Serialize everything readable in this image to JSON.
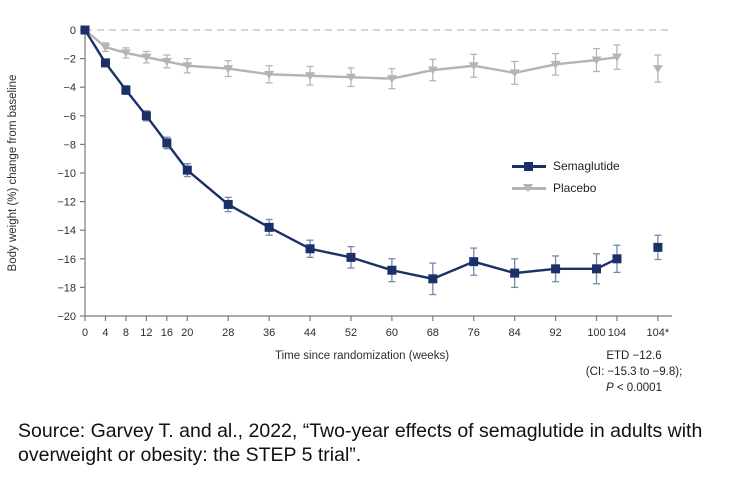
{
  "chart_data": {
    "type": "line",
    "title": "",
    "xlabel": "Time since randomization (weeks)",
    "ylabel": "Body weight (%) change from baseline",
    "x_weeks": [
      0,
      4,
      8,
      12,
      16,
      20,
      28,
      36,
      44,
      52,
      60,
      68,
      76,
      84,
      92,
      100,
      104
    ],
    "x_tick_weeks": [
      0,
      4,
      8,
      12,
      16,
      20,
      28,
      36,
      44,
      52,
      60,
      68,
      76,
      84,
      92,
      100,
      104,
      112
    ],
    "x_tick_labels": [
      "0",
      "4",
      "8",
      "12",
      "16",
      "20",
      "28",
      "36",
      "44",
      "52",
      "60",
      "68",
      "76",
      "84",
      "92",
      "100",
      "104",
      "104*"
    ],
    "y_ticks": [
      0,
      -2,
      -4,
      -6,
      -8,
      -10,
      -12,
      -14,
      -16,
      -18,
      -20
    ],
    "y_tick_labels": [
      "0",
      "−2",
      "−4",
      "−6",
      "−8",
      "−10",
      "−12",
      "−14",
      "−16",
      "−18",
      "−20"
    ],
    "ylim": [
      -20,
      0.5
    ],
    "grid": false,
    "legend_position": "middle-right",
    "zero_line": {
      "style": "dashed",
      "color": "#c9c9c9"
    },
    "axis_color": "#7a7a7a",
    "series": [
      {
        "name": "Placebo",
        "color": "#b5b4b1",
        "error_color": "#b6b6b4",
        "marker": "triangle-down",
        "values": [
          0,
          -1.2,
          -1.6,
          -1.9,
          -2.2,
          -2.5,
          -2.7,
          -3.1,
          -3.2,
          -3.3,
          -3.4,
          -2.8,
          -2.5,
          -3.0,
          -2.4,
          -2.1,
          -1.9
        ],
        "errors": [
          0.15,
          0.3,
          0.35,
          0.4,
          0.45,
          0.5,
          0.55,
          0.6,
          0.65,
          0.65,
          0.7,
          0.75,
          0.8,
          0.8,
          0.75,
          0.8,
          0.85
        ],
        "isolated_point": {
          "week": 112,
          "tick_label": "104*",
          "value": -2.7,
          "error": 0.95
        }
      },
      {
        "name": "Semaglutide",
        "color": "#1b3068",
        "error_color": "#7688ac",
        "marker": "square",
        "values": [
          0,
          -2.3,
          -4.2,
          -6.0,
          -7.9,
          -9.8,
          -12.2,
          -13.8,
          -15.3,
          -15.9,
          -16.8,
          -17.4,
          -16.2,
          -17.0,
          -16.7,
          -16.7,
          -16.0
        ],
        "errors": [
          0.15,
          0.25,
          0.3,
          0.35,
          0.4,
          0.45,
          0.5,
          0.55,
          0.6,
          0.75,
          0.8,
          1.1,
          0.95,
          1.0,
          0.9,
          1.05,
          0.95
        ],
        "isolated_point": {
          "week": 112,
          "tick_label": "104*",
          "value": -15.2,
          "error": 0.85
        }
      }
    ]
  },
  "legend": {
    "semaglutide_label": "Semaglutide",
    "placebo_label": "Placebo"
  },
  "annotation": {
    "line1": "ETD −12.6",
    "line2": "(CI: −15.3 to −9.8);",
    "p_label": "P",
    "p_rest": " < 0.0001"
  },
  "source": {
    "text": "Source: Garvey T. and al., 2022, “Two-year effects of semaglutide in adults with overweight or obesity: the STEP 5 trial”."
  },
  "colors": {
    "semaglutide": "#1b3068",
    "placebo": "#b5b4b1",
    "zero_line": "#c9c9c9",
    "text": "#111111"
  }
}
